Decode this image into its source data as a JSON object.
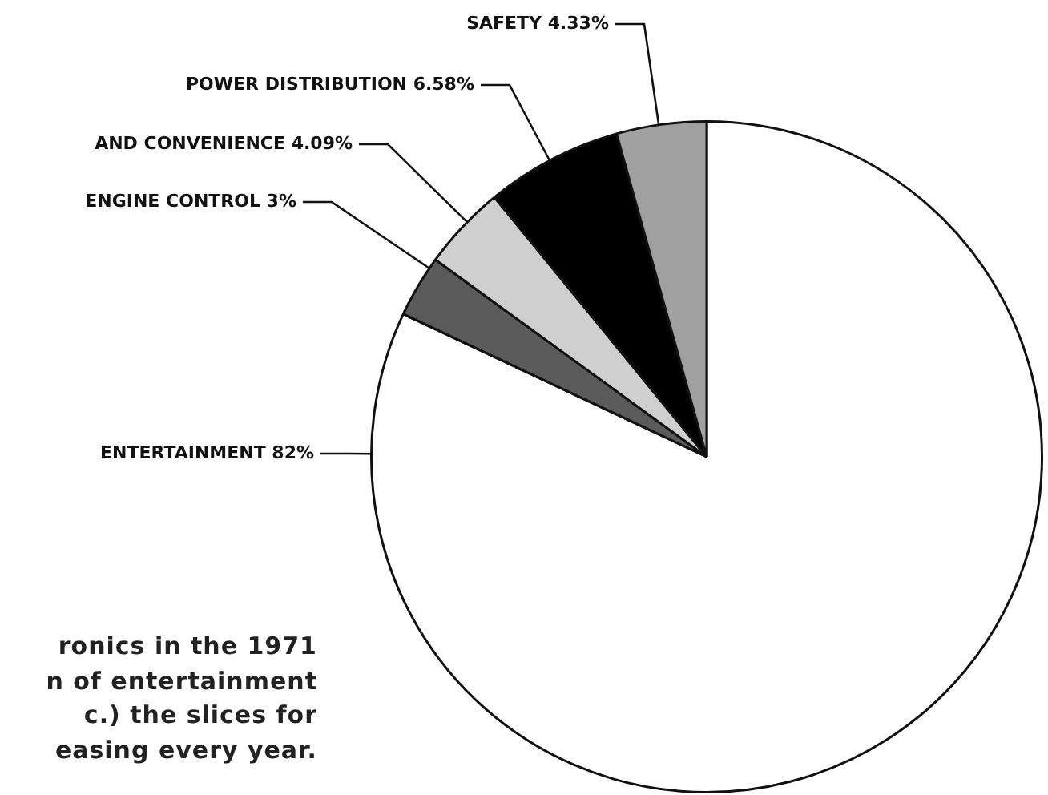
{
  "chart_data": {
    "type": "pie",
    "categories": [
      "ENTERTAINMENT",
      "ENGINE CONTROL",
      "AND CONVENIENCE",
      "POWER DISTRIBUTION",
      "SAFETY"
    ],
    "values": [
      82,
      3,
      4.09,
      6.58,
      4.33
    ],
    "value_labels": [
      "82%",
      "3%",
      "4.09%",
      "6.58%",
      "4.33%"
    ],
    "colors": [
      "#ffffff",
      "#5a5a5a",
      "#cfcfcf",
      "#000000",
      "#a0a0a0"
    ],
    "annotations": [
      "ronics in the 1971\nn of entertainment\nc.) the slices for\neasing every year."
    ]
  }
}
